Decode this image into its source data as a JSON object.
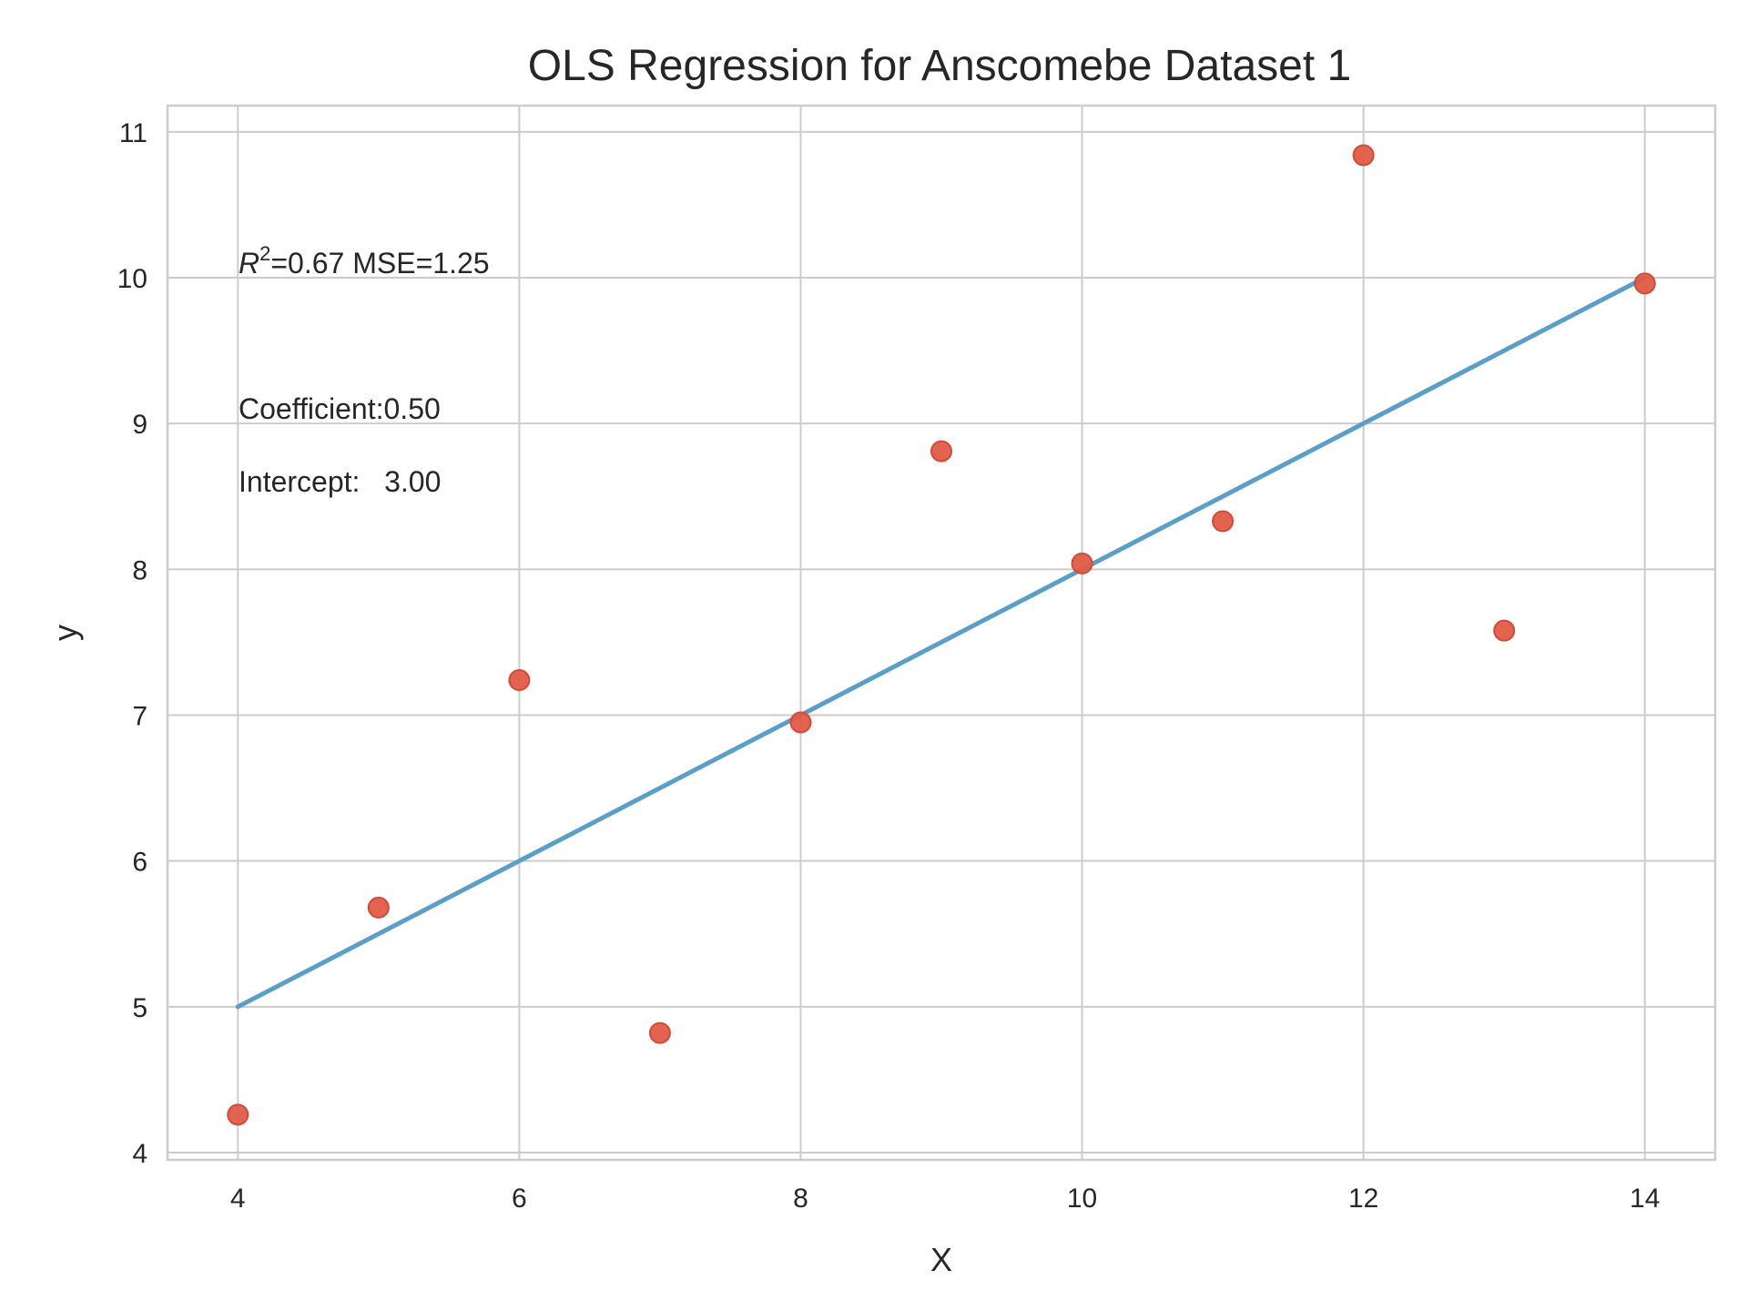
{
  "chart_data": {
    "type": "scatter",
    "title": "OLS Regression for Anscomebe Dataset 1",
    "xlabel": "X",
    "ylabel": "y",
    "xlim": [
      3.5,
      14.5
    ],
    "ylim": [
      3.95,
      11.18
    ],
    "x_ticks": [
      4,
      6,
      8,
      10,
      12,
      14
    ],
    "y_ticks": [
      4,
      5,
      6,
      7,
      8,
      9,
      10,
      11
    ],
    "grid": true,
    "legend": "none",
    "series": [
      {
        "kind": "scatter",
        "color": "#e15b48",
        "points": [
          {
            "x": 10,
            "y": 8.04
          },
          {
            "x": 8,
            "y": 6.95
          },
          {
            "x": 13,
            "y": 7.58
          },
          {
            "x": 9,
            "y": 8.81
          },
          {
            "x": 11,
            "y": 8.33
          },
          {
            "x": 14,
            "y": 9.96
          },
          {
            "x": 6,
            "y": 7.24
          },
          {
            "x": 4,
            "y": 4.26
          },
          {
            "x": 12,
            "y": 10.84
          },
          {
            "x": 7,
            "y": 4.82
          },
          {
            "x": 5,
            "y": 5.68
          }
        ]
      },
      {
        "kind": "line",
        "color": "#5b9fc9",
        "x": [
          4,
          14
        ],
        "y": [
          5.0,
          10.0
        ]
      }
    ],
    "annotations": {
      "r2_symbol": "R",
      "r2_superscript": "2",
      "r2_text": "=0.67 MSE=1.25",
      "coefficient": "Coefficient:0.50",
      "intercept": "Intercept:   3.00"
    }
  }
}
